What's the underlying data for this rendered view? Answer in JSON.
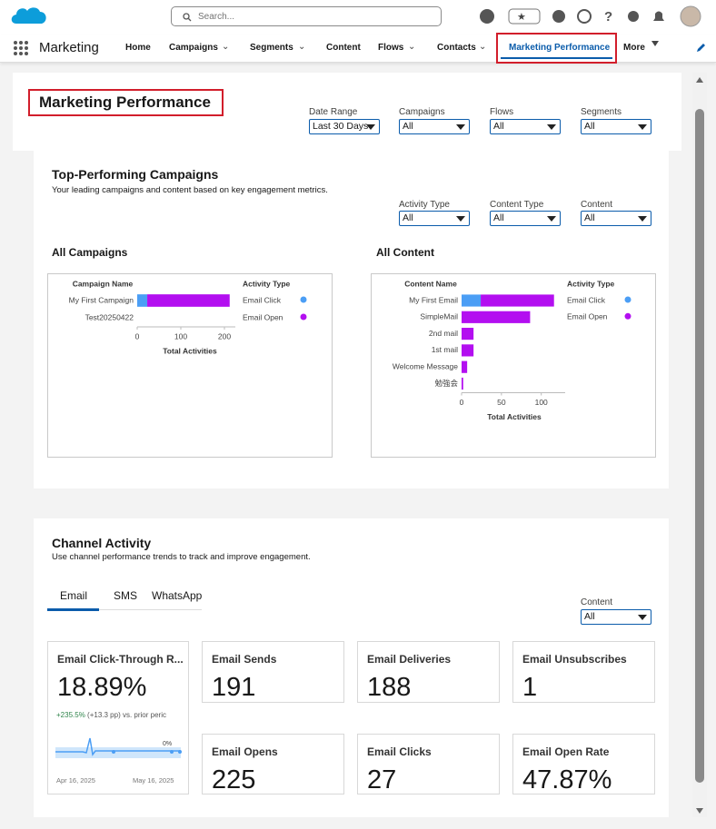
{
  "header": {
    "search_placeholder": "Search...",
    "app_name": "Marketing",
    "nav": [
      "Home",
      "Campaigns",
      "Segments",
      "Content",
      "Flows",
      "Contacts",
      "Marketing Performance",
      "More"
    ]
  },
  "page": {
    "title": "Marketing Performance",
    "filters": [
      {
        "label": "Date Range",
        "value": "Last 30 Days"
      },
      {
        "label": "Campaigns",
        "value": "All"
      },
      {
        "label": "Flows",
        "value": "All"
      },
      {
        "label": "Segments",
        "value": "All"
      }
    ]
  },
  "top_performing": {
    "title": "Top-Performing Campaigns",
    "subtitle": "Your leading campaigns and content based on key engagement metrics.",
    "filters": [
      {
        "label": "Activity Type",
        "value": "All"
      },
      {
        "label": "Content Type",
        "value": "All"
      },
      {
        "label": "Content",
        "value": "All"
      }
    ]
  },
  "chart_data": [
    {
      "type": "bar",
      "orientation": "horizontal",
      "stacked": true,
      "title": "All Campaigns",
      "y_label": "Campaign Name",
      "x_label": "Total Activities",
      "legend_title": "Activity Type",
      "categories": [
        "My First Campaign",
        "Test20250422"
      ],
      "series": [
        {
          "name": "Email Click",
          "color": "#4b9ef5",
          "values": [
            23,
            0
          ]
        },
        {
          "name": "Email Open",
          "color": "#b30ff0",
          "values": [
            189,
            0
          ]
        }
      ],
      "xlim": [
        0,
        225
      ],
      "xticks": [
        0,
        100,
        200
      ]
    },
    {
      "type": "bar",
      "orientation": "horizontal",
      "stacked": true,
      "title": "All Content",
      "y_label": "Content Name",
      "x_label": "Total Activities",
      "legend_title": "Activity Type",
      "categories": [
        "My First Email",
        "SimpleMail",
        "2nd mail",
        "1st mail",
        "Welcome Message",
        "勉強会"
      ],
      "series": [
        {
          "name": "Email Click",
          "color": "#4b9ef5",
          "values": [
            24,
            0,
            0,
            0,
            0,
            0
          ]
        },
        {
          "name": "Email Open",
          "color": "#b30ff0",
          "values": [
            92,
            86,
            15,
            15,
            7,
            2
          ]
        }
      ],
      "xlim": [
        0,
        130
      ],
      "xticks": [
        0,
        50,
        100
      ]
    }
  ],
  "channel_activity": {
    "title": "Channel Activity",
    "subtitle": "Use channel performance trends to track and improve engagement.",
    "tabs": [
      "Email",
      "SMS",
      "WhatsApp"
    ],
    "filter": {
      "label": "Content",
      "value": "All"
    },
    "cards": [
      {
        "title": "Email Click-Through R...",
        "value": "18.89%",
        "change": "+235.5%",
        "change_detail": "(+13.3 pp) vs. prior peric",
        "spark_label": "0%",
        "start_date": "Apr 16, 2025",
        "end_date": "May 16, 2025"
      },
      {
        "title": "Email Sends",
        "value": "191"
      },
      {
        "title": "Email Deliveries",
        "value": "188"
      },
      {
        "title": "Email Unsubscribes",
        "value": "1"
      },
      {
        "title": "Email Opens",
        "value": "225"
      },
      {
        "title": "Email Clicks",
        "value": "27"
      },
      {
        "title": "Email Open Rate",
        "value": "47.87%"
      }
    ]
  }
}
